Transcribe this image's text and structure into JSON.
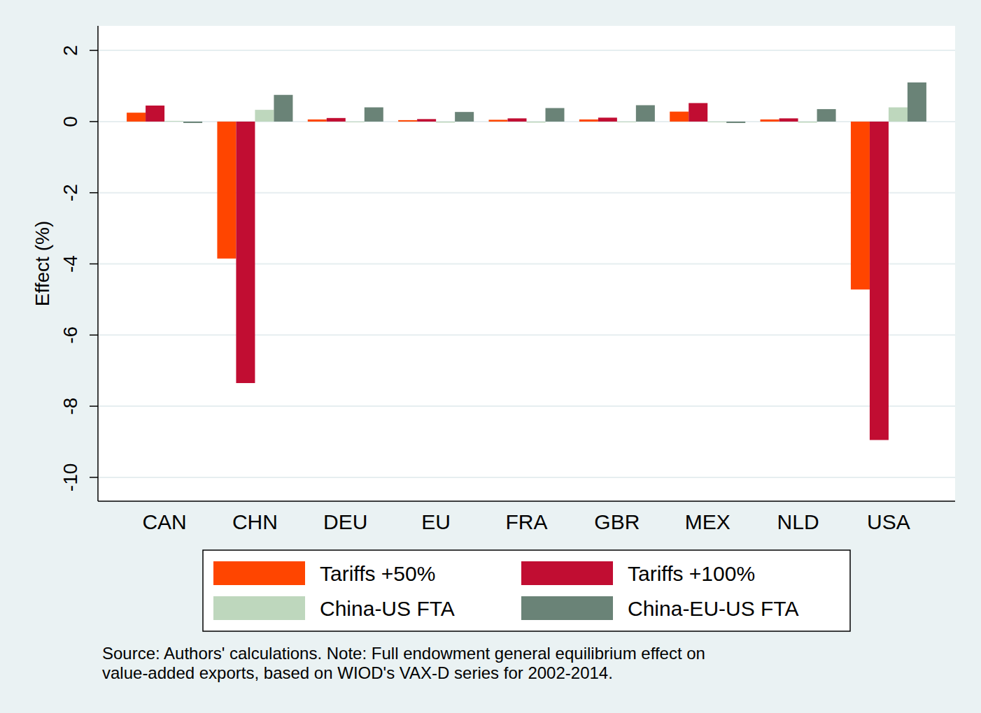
{
  "chart_data": {
    "type": "bar",
    "y_label": "Effect (%)",
    "categories": [
      "CAN",
      "CHN",
      "DEU",
      "EU",
      "FRA",
      "GBR",
      "MEX",
      "NLD",
      "USA"
    ],
    "series": [
      {
        "name": "Tariffs +50%",
        "color": "#ff4500",
        "values": [
          0.25,
          -3.85,
          0.06,
          0.04,
          0.05,
          0.06,
          0.28,
          0.06,
          -4.72
        ]
      },
      {
        "name": "Tariffs +100%",
        "color": "#c10d32",
        "values": [
          0.45,
          -7.35,
          0.1,
          0.07,
          0.09,
          0.11,
          0.52,
          0.09,
          -8.95
        ]
      },
      {
        "name": "China-US FTA",
        "color": "#bed7bd",
        "values": [
          0.02,
          0.33,
          -0.02,
          -0.03,
          -0.03,
          -0.02,
          -0.02,
          -0.03,
          0.4
        ]
      },
      {
        "name": "China-EU-US FTA",
        "color": "#6a8377",
        "values": [
          -0.04,
          0.75,
          0.4,
          0.27,
          0.38,
          0.46,
          -0.04,
          0.35,
          1.1
        ]
      }
    ],
    "ylim": [
      -10.67,
      2.69
    ],
    "yticks": [
      -10,
      -8,
      -6,
      -4,
      -2,
      0,
      2
    ],
    "grid": true,
    "legend": "bottom",
    "note": [
      "Source: Authors' calculations. Note: Full endowment general equilibrium effect on",
      "value-added exports, based on WIOD's VAX-D series for 2002-2014."
    ]
  }
}
